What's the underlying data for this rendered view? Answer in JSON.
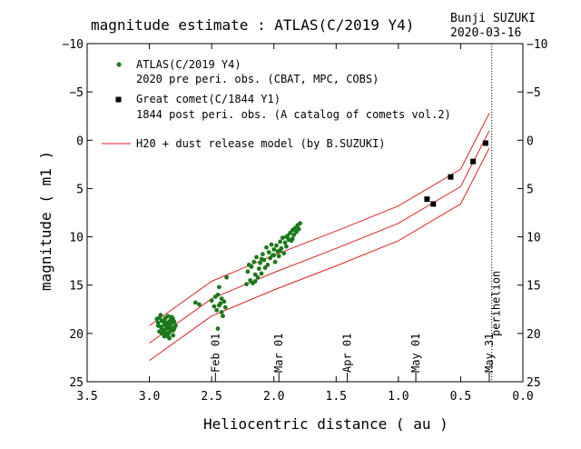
{
  "header": {
    "title": "magnitude estimate : ATLAS(C/2019 Y4)",
    "author": "Bunji SUZUKI",
    "date": "2020-03-16"
  },
  "chart_data": {
    "type": "scatter",
    "xlabel": "Heliocentric distance ( au )",
    "ylabel": "magnitude ( m1 )",
    "xlim": [
      3.5,
      0.0
    ],
    "ylim": [
      25,
      -10
    ],
    "y_inverted": true,
    "x_inverted": true,
    "x_ticks": [
      3.5,
      3.0,
      2.5,
      2.0,
      1.5,
      1.0,
      0.5,
      0.0
    ],
    "x_tick_labels": [
      "3.5",
      "3.0",
      "2.5",
      "2.0",
      "1.5",
      "1.0",
      "0.5",
      "0.0"
    ],
    "y_ticks": [
      -10,
      -5,
      0,
      5,
      10,
      15,
      20,
      25
    ],
    "y_tick_labels": [
      "−10",
      "−5",
      "0",
      "5",
      "10",
      "15",
      "20",
      "25"
    ],
    "grid": false,
    "legend_position": "top-left",
    "date_markers": [
      {
        "label": "Feb 01",
        "x": 2.47
      },
      {
        "label": "Mar 01",
        "x": 1.96
      },
      {
        "label": "Apr 01",
        "x": 1.41
      },
      {
        "label": "May 01",
        "x": 0.86
      },
      {
        "label": "May 31",
        "x": 0.27
      }
    ],
    "perihelion": {
      "label": "perihelion",
      "x": 0.25
    },
    "series": [
      {
        "name": "ATLAS(C/2019 Y4)",
        "subtitle": "2020 pre peri. obs. (CBAT, MPC, COBS)",
        "marker": "circle",
        "color": "#1a7a1a",
        "points": [
          [
            2.94,
            18.5
          ],
          [
            2.93,
            19.2
          ],
          [
            2.92,
            19.8
          ],
          [
            2.91,
            18.1
          ],
          [
            2.9,
            20.0
          ],
          [
            2.9,
            19.5
          ],
          [
            2.89,
            18.7
          ],
          [
            2.88,
            19.1
          ],
          [
            2.88,
            20.3
          ],
          [
            2.87,
            18.4
          ],
          [
            2.87,
            19.6
          ],
          [
            2.86,
            20.1
          ],
          [
            2.86,
            18.9
          ],
          [
            2.85,
            19.3
          ],
          [
            2.85,
            18.2
          ],
          [
            2.84,
            19.9
          ],
          [
            2.84,
            20.5
          ],
          [
            2.83,
            18.6
          ],
          [
            2.83,
            19.0
          ],
          [
            2.82,
            19.4
          ],
          [
            2.82,
            18.3
          ],
          [
            2.81,
            20.2
          ],
          [
            2.81,
            19.7
          ],
          [
            2.8,
            18.8
          ],
          [
            2.79,
            19.2
          ],
          [
            2.93,
            18.9
          ],
          [
            2.92,
            18.4
          ],
          [
            2.91,
            19.3
          ],
          [
            2.89,
            19.9
          ],
          [
            2.88,
            18.6
          ],
          [
            2.86,
            19.4
          ],
          [
            2.85,
            20.3
          ],
          [
            2.84,
            18.8
          ],
          [
            2.83,
            19.6
          ],
          [
            2.82,
            18.9
          ],
          [
            2.81,
            18.5
          ],
          [
            2.9,
            18.7
          ],
          [
            2.87,
            20.0
          ],
          [
            2.85,
            19.0
          ],
          [
            2.8,
            19.5
          ],
          [
            2.63,
            16.8
          ],
          [
            2.6,
            17.0
          ],
          [
            2.5,
            16.6
          ],
          [
            2.48,
            17.2
          ],
          [
            2.47,
            16.2
          ],
          [
            2.46,
            17.6
          ],
          [
            2.45,
            16.0
          ],
          [
            2.45,
            19.5
          ],
          [
            2.44,
            17.1
          ],
          [
            2.44,
            15.2
          ],
          [
            2.43,
            16.9
          ],
          [
            2.42,
            17.8
          ],
          [
            2.42,
            16.4
          ],
          [
            2.41,
            18.2
          ],
          [
            2.4,
            16.7
          ],
          [
            2.39,
            17.3
          ],
          [
            2.38,
            14.2
          ],
          [
            2.22,
            14.9
          ],
          [
            2.21,
            13.6
          ],
          [
            2.2,
            12.9
          ],
          [
            2.19,
            14.5
          ],
          [
            2.18,
            13.1
          ],
          [
            2.17,
            14.8
          ],
          [
            2.16,
            12.6
          ],
          [
            2.15,
            13.9
          ],
          [
            2.14,
            12.1
          ],
          [
            2.13,
            14.2
          ],
          [
            2.12,
            13.3
          ],
          [
            2.11,
            12.7
          ],
          [
            2.1,
            13.8
          ],
          [
            2.09,
            11.8
          ],
          [
            2.08,
            12.4
          ],
          [
            2.07,
            13.2
          ],
          [
            2.06,
            11.1
          ],
          [
            2.05,
            12.9
          ],
          [
            2.04,
            11.6
          ],
          [
            2.03,
            12.2
          ],
          [
            2.02,
            10.8
          ],
          [
            2.01,
            11.9
          ],
          [
            2.0,
            11.3
          ],
          [
            1.99,
            12.6
          ],
          [
            1.98,
            10.9
          ],
          [
            1.97,
            11.5
          ],
          [
            1.96,
            12.0
          ],
          [
            1.95,
            10.5
          ],
          [
            1.94,
            11.2
          ],
          [
            1.93,
            10.1
          ],
          [
            1.92,
            11.7
          ],
          [
            1.91,
            10.6
          ],
          [
            1.9,
            11.0
          ],
          [
            1.89,
            9.9
          ],
          [
            1.88,
            10.3
          ],
          [
            1.87,
            9.6
          ],
          [
            1.86,
            10.4
          ],
          [
            1.85,
            9.3
          ],
          [
            1.84,
            9.8
          ],
          [
            1.83,
            9.1
          ],
          [
            1.82,
            9.5
          ],
          [
            1.81,
            8.8
          ],
          [
            1.8,
            9.2
          ],
          [
            1.79,
            8.6
          ],
          [
            2.1,
            12.3
          ],
          [
            2.0,
            11.9
          ],
          [
            1.95,
            11.4
          ],
          [
            2.15,
            14.6
          ],
          [
            1.9,
            10.0
          ],
          [
            1.85,
            10.2
          ]
        ]
      },
      {
        "name": "Great comet(C/1844 Y1)",
        "subtitle": "1844 post peri. obs. (A catalog of comets vol.2)",
        "marker": "square",
        "color": "#000000",
        "points": [
          [
            0.77,
            6.1
          ],
          [
            0.72,
            6.6
          ],
          [
            0.58,
            3.8
          ],
          [
            0.4,
            2.2
          ],
          [
            0.3,
            0.3
          ]
        ]
      },
      {
        "name": "H20 + dust release model (by B.SUZUKI)",
        "marker": "line",
        "color": "#e02020",
        "curves": [
          [
            [
              3.0,
              19.2
            ],
            [
              2.5,
              14.6
            ],
            [
              2.0,
              11.9
            ],
            [
              1.5,
              9.4
            ],
            [
              1.0,
              6.8
            ],
            [
              0.5,
              3.0
            ],
            [
              0.27,
              -2.8
            ]
          ],
          [
            [
              3.0,
              21.0
            ],
            [
              2.5,
              16.4
            ],
            [
              2.0,
              13.7
            ],
            [
              1.5,
              11.2
            ],
            [
              1.0,
              8.6
            ],
            [
              0.5,
              4.8
            ],
            [
              0.27,
              -1.0
            ]
          ],
          [
            [
              3.0,
              22.8
            ],
            [
              2.5,
              18.2
            ],
            [
              2.0,
              15.5
            ],
            [
              1.5,
              13.0
            ],
            [
              1.0,
              10.4
            ],
            [
              0.5,
              6.6
            ],
            [
              0.27,
              0.8
            ]
          ]
        ]
      }
    ]
  }
}
